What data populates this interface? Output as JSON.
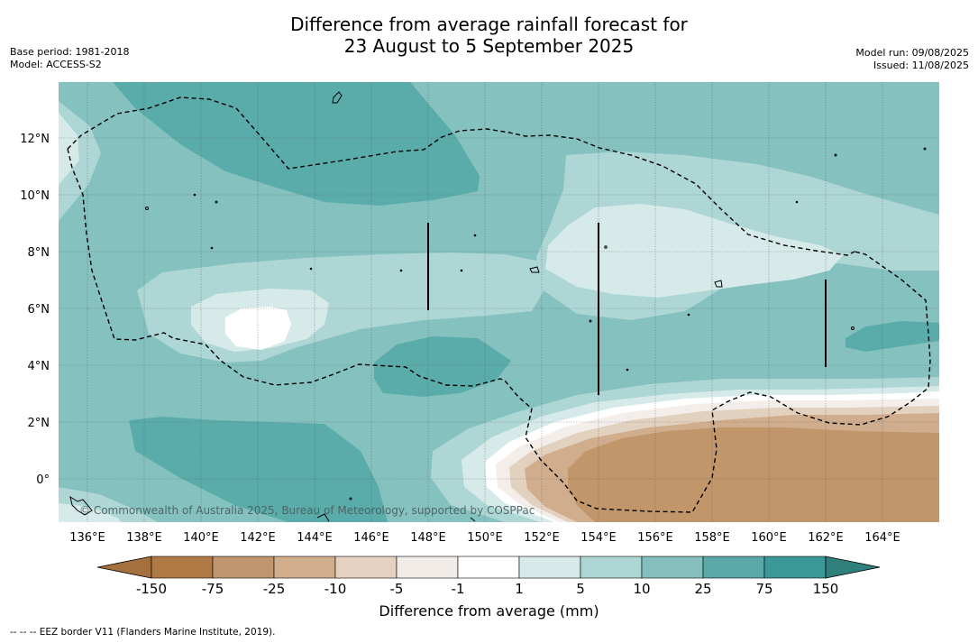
{
  "header": {
    "title_line1": "Difference from average rainfall forecast for",
    "title_line2": "23 August to 5 September 2025",
    "base_period": "Base period: 1981-2018",
    "model": "Model: ACCESS-S2",
    "model_run": "Model run: 09/08/2025",
    "issued": "Issued: 11/08/2025"
  },
  "map": {
    "lon_labels": [
      "136°E",
      "138°E",
      "140°E",
      "142°E",
      "144°E",
      "146°E",
      "148°E",
      "150°E",
      "152°E",
      "154°E",
      "156°E",
      "158°E",
      "160°E",
      "162°E",
      "164°E"
    ],
    "lat_labels": [
      "12°N",
      "10°N",
      "8°N",
      "6°N",
      "4°N",
      "2°N",
      "0°"
    ],
    "copyright": "© Commonwealth of Australia 2025, Bureau of Meteorology, supported by COSPPac",
    "colors": {
      "ocean_base": "#84c1bf",
      "wet_strong": "#5aacab",
      "wet_light": "#add6d5",
      "near_normal_wet": "#d6eae9",
      "white": "#ffffff",
      "dry_1": "#f3eeea",
      "dry_2": "#e3d1bf",
      "dry_3": "#d0ad8d",
      "dry_4": "#c1966b",
      "eez_line": "#000000"
    }
  },
  "colorbar": {
    "title": "Difference from average (mm)",
    "tick_labels": [
      "-150",
      "-75",
      "-25",
      "-10",
      "-5",
      "-1",
      "1",
      "5",
      "10",
      "25",
      "75",
      "150"
    ],
    "bins": [
      {
        "color": "#a4703d",
        "extend": "low"
      },
      {
        "color": "#af7a45"
      },
      {
        "color": "#c09570"
      },
      {
        "color": "#d2ae8d"
      },
      {
        "color": "#e5d1bf"
      },
      {
        "color": "#f1ece7"
      },
      {
        "color": "#ffffff"
      },
      {
        "color": "#d6eae9"
      },
      {
        "color": "#acd5d4"
      },
      {
        "color": "#84bfbe"
      },
      {
        "color": "#5aa8a7"
      },
      {
        "color": "#3a9896"
      },
      {
        "color": "#2f7f7d",
        "extend": "high"
      }
    ]
  },
  "footnote": "--  --  -- EEZ border V11 (Flanders Marine Institute, 2019)."
}
